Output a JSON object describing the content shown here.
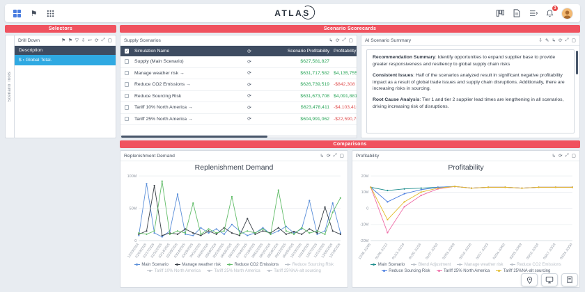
{
  "topbar": {
    "logo": "ATLAS",
    "notification_count": "3"
  },
  "icons": {
    "flag": "⚑",
    "filter": "▽",
    "download": "⇩",
    "undo": "↩",
    "refresh": "⟳",
    "expand": "⤢",
    "window": "▢",
    "link": "↳",
    "edit": "✎",
    "arrow_right": "→",
    "check": "✓",
    "chevron": "›"
  },
  "selectors": {
    "header": "Selectors",
    "side_tab": "Scenario Tools",
    "drilldown_title": "Drill Down",
    "description_header": "Description",
    "selected_row": "$ › Global Total."
  },
  "scorecards": {
    "header": "Scenario Scorecards",
    "supply": {
      "title": "Supply Scenarios",
      "columns": {
        "name": "Simulation Name",
        "profit": "Scenario Profitability",
        "delta": "Profitability Delta"
      },
      "rows": [
        {
          "name": "Supply (Main Scenario)",
          "arrow": false,
          "profit": "$627,581,827",
          "delta": "",
          "delta_positive": true
        },
        {
          "name": "Manage weather risk",
          "arrow": true,
          "profit": "$631,717,582",
          "delta": "$4,135,755",
          "delta_positive": true
        },
        {
          "name": "Reduce CO2 Emissions",
          "arrow": true,
          "profit": "$626,739,519",
          "delta": "-$842,308",
          "delta_positive": false
        },
        {
          "name": "Reduce Sourcing Risk",
          "arrow": false,
          "profit": "$631,673,708",
          "delta": "$4,091,881",
          "delta_positive": true
        },
        {
          "name": "Tariff 10% North America",
          "arrow": true,
          "profit": "$623,478,411",
          "delta": "-$4,103,416",
          "delta_positive": false
        },
        {
          "name": "Tariff 25% North America",
          "arrow": true,
          "profit": "$604,991,062",
          "delta": "-$22,590,765",
          "delta_positive": false
        }
      ]
    },
    "ai": {
      "title": "AI Scenario Summary",
      "paragraphs": [
        {
          "label": "Recommendation Summary",
          "text": ": Identify opportunities to expand supplier base to provide greater responsiveness and resiliency to global supply chain risks"
        },
        {
          "label": "Consistent Issues",
          "text": ": Half of the scenarios analyzed result in significant negative profitability impact as a result of global trade issues and supply chain disruptions. Additionally, there are increasing risks in sourcing."
        },
        {
          "label": "Root Cause Analysis",
          "text": ": Tier 1 and tier 2 supplier lead times are lengthening in all scenarios, driving increasing risk of disruptions."
        }
      ]
    }
  },
  "comparisons": {
    "header": "Comparisons",
    "left_panel_title": "Replenishment Demand",
    "right_panel_title": "Profitability"
  },
  "chart_data": [
    {
      "id": "replenishment",
      "type": "line",
      "title": "Replenishment Demand",
      "ylabel": "",
      "ylim": [
        0,
        100
      ],
      "yticks": [
        {
          "value": 0,
          "label": "0"
        },
        {
          "value": 50,
          "label": "50M"
        },
        {
          "value": 100,
          "label": "100M"
        }
      ],
      "grid": true,
      "legend_position": "bottom",
      "x": [
        "12/20/2024",
        "01/03/2025",
        "01/17/2025",
        "01/31/2025",
        "02/14/2025",
        "02/28/2025",
        "03/14/2025",
        "03/28/2025",
        "04/11/2025",
        "04/25/2025",
        "05/09/2025",
        "05/23/2025",
        "06/06/2025",
        "06/20/2025",
        "07/04/2025",
        "07/18/2025",
        "08/01/2025",
        "08/15/2025",
        "08/29/2025",
        "09/12/2025",
        "09/26/2025",
        "10/10/2025",
        "10/24/2025",
        "11/07/2025",
        "11/21/2025",
        "12/05/2025",
        "12/19/2025"
      ],
      "series": [
        {
          "name": "Main Scenario",
          "color": "#5b8fd9",
          "disabled": false,
          "values": [
            8,
            88,
            12,
            6,
            15,
            72,
            10,
            8,
            20,
            12,
            18,
            10,
            25,
            15,
            8,
            12,
            20,
            10,
            15,
            22,
            12,
            18,
            62,
            10,
            15,
            58,
            12
          ]
        },
        {
          "name": "Manage weather risk",
          "color": "#3a4047",
          "disabled": false,
          "values": [
            10,
            15,
            85,
            8,
            12,
            10,
            18,
            12,
            8,
            15,
            10,
            20,
            12,
            8,
            34,
            10,
            15,
            12,
            20,
            10,
            14,
            10,
            18,
            12,
            52,
            15,
            10
          ]
        },
        {
          "name": "Reduce CO2 Emissions",
          "color": "#63bd6a",
          "disabled": false,
          "values": [
            12,
            10,
            15,
            92,
            10,
            15,
            12,
            58,
            10,
            18,
            12,
            15,
            68,
            10,
            15,
            12,
            18,
            10,
            78,
            15,
            10,
            20,
            12,
            15,
            10,
            44,
            66
          ]
        },
        {
          "name": "Reduce Sourcing Risk",
          "disabled": true
        },
        {
          "name": "Tariff 10% North America",
          "disabled": true
        },
        {
          "name": "Tariff 25% North America",
          "disabled": true
        },
        {
          "name": "Tariff 25%NA-alt sourcing",
          "disabled": true
        }
      ]
    },
    {
      "id": "profitability",
      "type": "line",
      "title": "Profitability",
      "ylabel": "",
      "ylim": [
        -20,
        20
      ],
      "yticks": [
        {
          "value": -20,
          "label": "-20M"
        },
        {
          "value": -10,
          "label": "-10M"
        },
        {
          "value": 0,
          "label": "0"
        },
        {
          "value": 10,
          "label": "10M"
        },
        {
          "value": 20,
          "label": "20M"
        }
      ],
      "grid": true,
      "legend_position": "bottom",
      "x": [
        "12/26..01/05",
        "01/06..01/12",
        "01/13..01/19",
        "01/20..01/26",
        "01/27..02/02",
        "02/03..02/09",
        "02/10..02/16",
        "02/17..02/23",
        "02/24..03/02",
        "03/03..03/09",
        "03/10..03/16",
        "03/17..03/23",
        "03/24..03/30"
      ],
      "series": [
        {
          "name": "Main Scenario",
          "color": "#1f8e8e",
          "disabled": false,
          "values": [
            13,
            11,
            12,
            12.5,
            13,
            13.5,
            12.5,
            13,
            13,
            12.5,
            13,
            13,
            13
          ]
        },
        {
          "name": "Blend Adjustment",
          "disabled": true
        },
        {
          "name": "Manage weather risk",
          "disabled": true
        },
        {
          "name": "Reduce CO2 Emissions",
          "disabled": true
        },
        {
          "name": "Reduce Sourcing Risk",
          "color": "#4a7de0",
          "disabled": false,
          "values": [
            13,
            4,
            9,
            11.5,
            13,
            13.5,
            12.5,
            13,
            13,
            12.5,
            13,
            13,
            13
          ]
        },
        {
          "name": "Tariff 25% North America",
          "color": "#ef6ea8",
          "disabled": false,
          "values": [
            13,
            -15,
            1,
            8,
            12,
            13.5,
            12.5,
            13,
            13,
            12.5,
            13,
            13,
            13
          ]
        },
        {
          "name": "Tariff 25%NA-alt sourcing",
          "color": "#e3bc2f",
          "disabled": false,
          "values": [
            13,
            -7,
            4,
            10,
            12.5,
            13.5,
            12.5,
            13,
            13,
            12.5,
            13,
            13,
            13
          ]
        }
      ]
    }
  ]
}
